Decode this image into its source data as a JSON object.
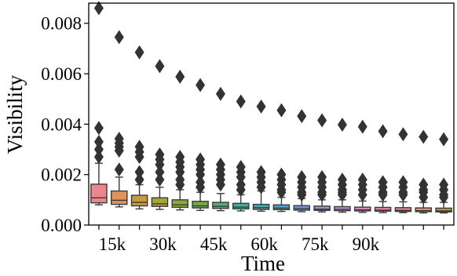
{
  "chart_data": {
    "type": "box",
    "xlabel": "Time",
    "ylabel": "Visibility",
    "ylim": [
      0,
      0.0088
    ],
    "yticks": [
      {
        "value": 0.0,
        "label": "0.000"
      },
      {
        "value": 0.002,
        "label": "0.002"
      },
      {
        "value": 0.004,
        "label": "0.004"
      },
      {
        "value": 0.006,
        "label": "0.006"
      },
      {
        "value": 0.008,
        "label": "0.008"
      }
    ],
    "xtick_labels": [
      {
        "index": 0,
        "label": "15k"
      },
      {
        "index": 2.5,
        "label": "30k"
      },
      {
        "index": 5,
        "label": "45k"
      },
      {
        "index": 7.5,
        "label": "60k"
      },
      {
        "index": 10,
        "label": "75k"
      },
      {
        "index": 12.5,
        "label": "90k"
      }
    ],
    "palette": [
      "#e9878c",
      "#e0935a",
      "#c49a3a",
      "#a8a43c",
      "#8ea83c",
      "#6bad4a",
      "#4fb07a",
      "#42ad96",
      "#45aab2",
      "#4ca3c9",
      "#6b99db",
      "#9b8fde",
      "#c486d6",
      "#e07fbd",
      "#e985a0"
    ],
    "outlier_color": "#333333",
    "boxes": [
      {
        "q1": 0.00088,
        "median": 0.00108,
        "q3": 0.00162,
        "whislo": 0.0008,
        "whishi": 0.00245,
        "fliers": [
          0.0086,
          0.00385,
          0.0033,
          0.003,
          0.0027
        ]
      },
      {
        "q1": 0.00082,
        "median": 0.00098,
        "q3": 0.00135,
        "whislo": 0.00072,
        "whishi": 0.0019,
        "fliers": [
          0.00745,
          0.00342,
          0.00325,
          0.0031,
          0.00295,
          0.0022
        ]
      },
      {
        "q1": 0.00076,
        "median": 0.0009,
        "q3": 0.00118,
        "whislo": 0.00064,
        "whishi": 0.0016,
        "fliers": [
          0.00685,
          0.0031,
          0.0029,
          0.0027,
          0.0021,
          0.0018
        ]
      },
      {
        "q1": 0.00074,
        "median": 0.00084,
        "q3": 0.00108,
        "whislo": 0.00062,
        "whishi": 0.0015,
        "fliers": [
          0.0063,
          0.0028,
          0.0026,
          0.0024,
          0.0021,
          0.0018
        ]
      },
      {
        "q1": 0.0007,
        "median": 0.0008,
        "q3": 0.001,
        "whislo": 0.0006,
        "whishi": 0.0014,
        "fliers": [
          0.00588,
          0.0027,
          0.0025,
          0.0023,
          0.0021,
          0.0018,
          0.0016
        ]
      },
      {
        "q1": 0.00068,
        "median": 0.00076,
        "q3": 0.00094,
        "whislo": 0.00058,
        "whishi": 0.0013,
        "fliers": [
          0.00555,
          0.0026,
          0.0024,
          0.0022,
          0.002,
          0.0017,
          0.0015
        ]
      },
      {
        "q1": 0.00066,
        "median": 0.00074,
        "q3": 0.0009,
        "whislo": 0.00057,
        "whishi": 0.00125,
        "fliers": [
          0.0052,
          0.0024,
          0.0022,
          0.002,
          0.0018,
          0.0016
        ]
      },
      {
        "q1": 0.00064,
        "median": 0.00071,
        "q3": 0.00086,
        "whislo": 0.00056,
        "whishi": 0.0012,
        "fliers": [
          0.0049,
          0.0023,
          0.0021,
          0.0019,
          0.0016,
          0.0014
        ]
      },
      {
        "q1": 0.00062,
        "median": 0.00069,
        "q3": 0.00082,
        "whislo": 0.00055,
        "whishi": 0.00135,
        "fliers": [
          0.0047,
          0.0021,
          0.0019,
          0.0017,
          0.0015
        ]
      },
      {
        "q1": 0.00061,
        "median": 0.00067,
        "q3": 0.0008,
        "whislo": 0.00054,
        "whishi": 0.0011,
        "fliers": [
          0.00455,
          0.002,
          0.0018,
          0.0016,
          0.0014,
          0.0013
        ]
      },
      {
        "q1": 0.00059,
        "median": 0.00065,
        "q3": 0.00077,
        "whislo": 0.00053,
        "whishi": 0.00105,
        "fliers": [
          0.00432,
          0.0019,
          0.0017,
          0.0015,
          0.0013,
          0.0012
        ]
      },
      {
        "q1": 0.00058,
        "median": 0.00063,
        "q3": 0.00075,
        "whislo": 0.00052,
        "whishi": 0.001,
        "fliers": [
          0.00415,
          0.0019,
          0.0017,
          0.0015,
          0.0013,
          0.0012
        ]
      },
      {
        "q1": 0.00057,
        "median": 0.00062,
        "q3": 0.00073,
        "whislo": 0.00051,
        "whishi": 0.001,
        "fliers": [
          0.00398,
          0.0018,
          0.0016,
          0.0014,
          0.0013,
          0.0012
        ]
      },
      {
        "q1": 0.00056,
        "median": 0.0006,
        "q3": 0.00071,
        "whislo": 0.0005,
        "whishi": 0.00095,
        "fliers": [
          0.0039,
          0.0018,
          0.0016,
          0.0014,
          0.0012
        ]
      },
      {
        "q1": 0.00055,
        "median": 0.00059,
        "q3": 0.0007,
        "whislo": 0.00049,
        "whishi": 0.00093,
        "fliers": [
          0.00372,
          0.0017,
          0.0015,
          0.0013,
          0.0012
        ]
      },
      {
        "q1": 0.00054,
        "median": 0.00058,
        "q3": 0.00069,
        "whislo": 0.00049,
        "whishi": 0.00092,
        "fliers": [
          0.0036,
          0.0017,
          0.0015,
          0.0013,
          0.0012
        ]
      },
      {
        "q1": 0.00053,
        "median": 0.00057,
        "q3": 0.00068,
        "whislo": 0.00048,
        "whishi": 0.0009,
        "fliers": [
          0.0035,
          0.0016,
          0.0014,
          0.0013,
          0.0011
        ]
      },
      {
        "q1": 0.00052,
        "median": 0.00056,
        "q3": 0.00067,
        "whislo": 0.00048,
        "whishi": 0.0009,
        "fliers": [
          0.0034,
          0.0016,
          0.0014,
          0.0012,
          0.0011
        ]
      }
    ]
  }
}
